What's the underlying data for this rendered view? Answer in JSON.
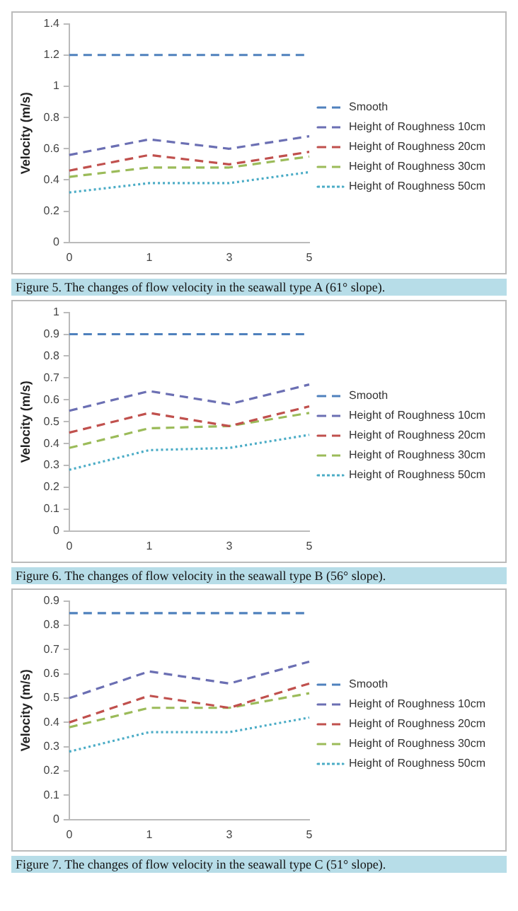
{
  "chart_data": [
    {
      "type": "line",
      "ylabel": "Velocity (m/s)",
      "categories": [
        "0",
        "1",
        "3",
        "5"
      ],
      "ylim": [
        0,
        1.4
      ],
      "yticks": [
        0,
        0.2,
        0.4,
        0.6,
        0.8,
        1,
        1.2,
        1.4
      ],
      "grid": false,
      "legend": "right",
      "marker": "none",
      "annotations": [
        "Figure 5. The changes of flow velocity in the seawall type A (61° slope)."
      ],
      "series": [
        {
          "name": "Smooth",
          "color": "#4f81bd",
          "line_style": "dashed",
          "values": [
            1.2,
            1.2,
            1.2,
            1.2
          ]
        },
        {
          "name": "Height of Roughness 10cm",
          "color": "#6b6fb3",
          "line_style": "dashed",
          "values": [
            0.56,
            0.66,
            0.6,
            0.68
          ]
        },
        {
          "name": "Height of Roughness 20cm",
          "color": "#c0504d",
          "line_style": "dashed",
          "values": [
            0.46,
            0.56,
            0.5,
            0.58
          ]
        },
        {
          "name": "Height of Roughness 30cm",
          "color": "#9bbb59",
          "line_style": "dashed",
          "values": [
            0.42,
            0.48,
            0.48,
            0.55
          ]
        },
        {
          "name": "Height of Roughness 50cm",
          "color": "#4bacc6",
          "line_style": "dotted",
          "values": [
            0.32,
            0.38,
            0.38,
            0.45
          ]
        }
      ]
    },
    {
      "type": "line",
      "ylabel": "Velocity (m/s)",
      "categories": [
        "0",
        "1",
        "3",
        "5"
      ],
      "ylim": [
        0,
        1
      ],
      "yticks": [
        0,
        0.1,
        0.2,
        0.3,
        0.4,
        0.5,
        0.6,
        0.7,
        0.8,
        0.9,
        1
      ],
      "grid": false,
      "legend": "right",
      "marker": "none",
      "annotations": [
        "Figure 6. The changes of flow velocity in the seawall type B (56° slope)."
      ],
      "series": [
        {
          "name": "Smooth",
          "color": "#4f81bd",
          "line_style": "dashed",
          "values": [
            0.9,
            0.9,
            0.9,
            0.9
          ]
        },
        {
          "name": "Height of Roughness 10cm",
          "color": "#6b6fb3",
          "line_style": "dashed",
          "values": [
            0.55,
            0.64,
            0.58,
            0.67
          ]
        },
        {
          "name": "Height of Roughness 20cm",
          "color": "#c0504d",
          "line_style": "dashed",
          "values": [
            0.45,
            0.54,
            0.48,
            0.57
          ]
        },
        {
          "name": "Height of Roughness 30cm",
          "color": "#9bbb59",
          "line_style": "dashed",
          "values": [
            0.38,
            0.47,
            0.48,
            0.54
          ]
        },
        {
          "name": "Height of Roughness 50cm",
          "color": "#4bacc6",
          "line_style": "dotted",
          "values": [
            0.28,
            0.37,
            0.38,
            0.44
          ]
        }
      ]
    },
    {
      "type": "line",
      "ylabel": "Velocity (m/s)",
      "categories": [
        "0",
        "1",
        "3",
        "5"
      ],
      "ylim": [
        0,
        0.9
      ],
      "yticks": [
        0,
        0.1,
        0.2,
        0.3,
        0.4,
        0.5,
        0.6,
        0.7,
        0.8,
        0.9
      ],
      "grid": false,
      "legend": "right",
      "marker": "none",
      "annotations": [
        "Figure 7. The changes of flow velocity in the seawall type C (51° slope)."
      ],
      "series": [
        {
          "name": "Smooth",
          "color": "#4f81bd",
          "line_style": "dashed",
          "values": [
            0.85,
            0.85,
            0.85,
            0.85
          ]
        },
        {
          "name": "Height of Roughness 10cm",
          "color": "#6b6fb3",
          "line_style": "dashed",
          "values": [
            0.5,
            0.61,
            0.56,
            0.65
          ]
        },
        {
          "name": "Height of Roughness 20cm",
          "color": "#c0504d",
          "line_style": "dashed",
          "values": [
            0.4,
            0.51,
            0.46,
            0.56
          ]
        },
        {
          "name": "Height of Roughness 30cm",
          "color": "#9bbb59",
          "line_style": "dashed",
          "values": [
            0.38,
            0.46,
            0.46,
            0.52
          ]
        },
        {
          "name": "Height of Roughness 50cm",
          "color": "#4bacc6",
          "line_style": "dotted",
          "values": [
            0.28,
            0.36,
            0.36,
            0.42
          ]
        }
      ]
    }
  ]
}
